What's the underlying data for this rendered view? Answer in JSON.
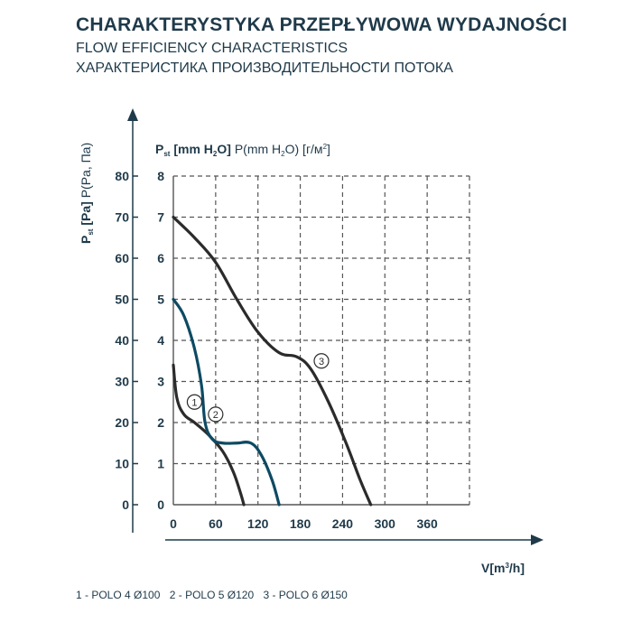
{
  "title": "CHARAKTERYSTYKA PRZEPŁYWOWA WYDAJNOŚCI",
  "subtitle_en": "FLOW EFFICIENCY CHARACTERISTICS",
  "subtitle_ru": "ХАРАКТЕРИСТИКА ПРОИЗВОДИТЕЛЬНОСТИ ПОТОКА",
  "legend_items": [
    "1 - POLO 4 Ø100",
    "2 - POLO 5 Ø120",
    "3 - POLO 6 Ø150"
  ],
  "colors": {
    "text": "#1f3a4a",
    "curve_dark": "#2b2b2b",
    "curve_teal": "#0d4a63",
    "grid": "#555555"
  },
  "chart_data": {
    "type": "line",
    "title": "CHARAKTERYSTYKA PRZEPŁYWOWA WYDAJNOŚCI",
    "xlabel": "V[m³/h]",
    "ylabel_left": "Pst [Pa] P(Pa, Па)",
    "ylabel_right": "Pst [mm H₂O] P(mm H₂O) [г/м²]",
    "x_ticks": [
      "0",
      "60",
      "120",
      "180",
      "240",
      "300",
      "360"
    ],
    "y_left_ticks": [
      "0",
      "10",
      "20",
      "30",
      "40",
      "50",
      "60",
      "70",
      "80"
    ],
    "y_right_ticks": [
      "0",
      "1",
      "2",
      "3",
      "4",
      "5",
      "6",
      "7",
      "8"
    ],
    "xlim": [
      0,
      420
    ],
    "ylim_mmH2O": [
      0,
      8
    ],
    "ylim_Pa": [
      0,
      80
    ],
    "grid": true,
    "series": [
      {
        "name": "1",
        "color": "#2b2b2b",
        "x": [
          0,
          5,
          15,
          30,
          50,
          70,
          85,
          95,
          100
        ],
        "y": [
          3.4,
          2.6,
          2.2,
          2.0,
          1.7,
          1.3,
          0.8,
          0.3,
          0
        ]
      },
      {
        "name": "2",
        "color": "#0d4a63",
        "x": [
          0,
          15,
          30,
          40,
          45,
          55,
          70,
          90,
          110,
          125,
          140,
          150
        ],
        "y": [
          5.0,
          4.6,
          3.8,
          2.9,
          2.0,
          1.6,
          1.5,
          1.5,
          1.5,
          1.2,
          0.6,
          0
        ]
      },
      {
        "name": "3",
        "color": "#2b2b2b",
        "x": [
          0,
          30,
          60,
          90,
          120,
          150,
          175,
          195,
          220,
          245,
          265,
          280
        ],
        "y": [
          7.0,
          6.5,
          5.9,
          5.0,
          4.2,
          3.7,
          3.6,
          3.3,
          2.5,
          1.5,
          0.6,
          0
        ]
      }
    ],
    "curve_labels": [
      {
        "text": "1",
        "x": 30,
        "y": 2.5
      },
      {
        "text": "2",
        "x": 60,
        "y": 2.2
      },
      {
        "text": "3",
        "x": 210,
        "y": 3.5
      }
    ]
  }
}
